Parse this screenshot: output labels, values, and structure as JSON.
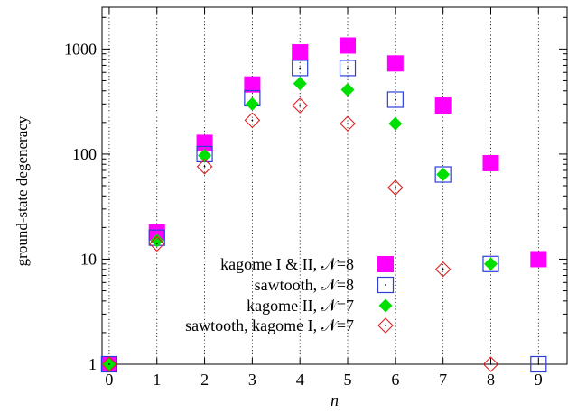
{
  "chart_data": {
    "type": "scatter",
    "xlabel": "n",
    "ylabel": "ground-state degeneracy",
    "xlim": [
      -0.15,
      9.6
    ],
    "ylim": [
      1,
      2500
    ],
    "yscale": "log",
    "grid": "vertical dotted lines at integer n",
    "legend_position": "bottom-center",
    "x_ticks": [
      0,
      1,
      2,
      3,
      4,
      5,
      6,
      7,
      8,
      9
    ],
    "x_tick_labels": [
      "0",
      "1",
      "2",
      "3",
      "4",
      "5",
      "6",
      "7",
      "8",
      "9"
    ],
    "y_ticks": [
      1,
      10,
      100,
      1000
    ],
    "y_tick_labels": [
      "1",
      "10",
      "100",
      "1000"
    ],
    "series": [
      {
        "name": "kagome I & II, 𝒩=8",
        "marker": "filled-square",
        "color": "#ff00ff",
        "x": [
          0,
          1,
          2,
          3,
          4,
          5,
          6,
          7,
          8,
          9
        ],
        "y": [
          1,
          18,
          128,
          460,
          930,
          1080,
          730,
          290,
          82,
          10
        ]
      },
      {
        "name": "sawtooth, 𝒩=8",
        "marker": "open-square",
        "color": "#2b3fd8",
        "x": [
          0,
          1,
          2,
          3,
          4,
          5,
          6,
          7,
          8,
          9
        ],
        "y": [
          1,
          16,
          100,
          340,
          660,
          660,
          330,
          64,
          9,
          1
        ]
      },
      {
        "name": "kagome II, 𝒩=7",
        "marker": "filled-diamond",
        "color": "#00e000",
        "x": [
          0,
          1,
          2,
          3,
          4,
          5,
          6,
          7,
          8
        ],
        "y": [
          1,
          15,
          97,
          300,
          470,
          410,
          195,
          64,
          9
        ]
      },
      {
        "name": "sawtooth, kagome I, 𝒩=7",
        "marker": "open-diamond",
        "color": "#e02020",
        "x": [
          0,
          1,
          2,
          3,
          4,
          5,
          6,
          7,
          8
        ],
        "y": [
          1,
          14,
          76,
          210,
          290,
          195,
          48,
          8,
          1
        ]
      }
    ]
  }
}
